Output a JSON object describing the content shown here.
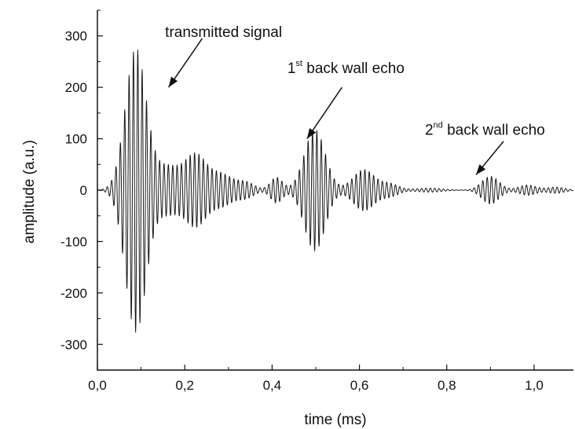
{
  "chart_data": {
    "type": "line",
    "title": "",
    "xlabel": "time (ms)",
    "ylabel": "amplitude (a.u.)",
    "xlim": [
      0,
      1.09
    ],
    "ylim": [
      -350,
      350
    ],
    "grid": false,
    "legend": "none",
    "line_color": "#1a1a1a",
    "x_ticks": [
      {
        "value": 0.0,
        "label": "0,0"
      },
      {
        "value": 0.2,
        "label": "0,2"
      },
      {
        "value": 0.4,
        "label": "0,4"
      },
      {
        "value": 0.6,
        "label": "0,6"
      },
      {
        "value": 0.8,
        "label": "0,8"
      },
      {
        "value": 1.0,
        "label": "1,0"
      }
    ],
    "y_ticks": [
      {
        "value": 300,
        "label": "300"
      },
      {
        "value": 200,
        "label": "200"
      },
      {
        "value": 100,
        "label": "100"
      },
      {
        "value": 0,
        "label": "0"
      },
      {
        "value": -100,
        "label": "-100"
      },
      {
        "value": -200,
        "label": "-200"
      },
      {
        "value": -300,
        "label": "-300"
      }
    ],
    "series": [
      {
        "carrier_frequency_khz": 100,
        "packets": [
          {
            "center_ms": 0.088,
            "width_ms": 0.024,
            "peak_amplitude": 275
          },
          {
            "center_ms": 0.16,
            "width_ms": 0.028,
            "peak_amplitude": 45
          },
          {
            "center_ms": 0.225,
            "width_ms": 0.025,
            "peak_amplitude": 68
          },
          {
            "center_ms": 0.285,
            "width_ms": 0.025,
            "peak_amplitude": 30
          },
          {
            "center_ms": 0.34,
            "width_ms": 0.02,
            "peak_amplitude": 15
          },
          {
            "center_ms": 0.41,
            "width_ms": 0.014,
            "peak_amplitude": 25
          },
          {
            "center_ms": 0.498,
            "width_ms": 0.024,
            "peak_amplitude": 118
          },
          {
            "center_ms": 0.61,
            "width_ms": 0.025,
            "peak_amplitude": 40
          },
          {
            "center_ms": 0.67,
            "width_ms": 0.02,
            "peak_amplitude": 12
          },
          {
            "center_ms": 0.76,
            "width_ms": 0.03,
            "peak_amplitude": 4
          },
          {
            "center_ms": 0.9,
            "width_ms": 0.02,
            "peak_amplitude": 27
          },
          {
            "center_ms": 0.985,
            "width_ms": 0.02,
            "peak_amplitude": 10
          },
          {
            "center_ms": 1.05,
            "width_ms": 0.02,
            "peak_amplitude": 6
          }
        ]
      }
    ],
    "annotations": [
      {
        "id": "transmitted",
        "text": "transmitted signal",
        "sup": "",
        "rest": "",
        "text_x": 0.155,
        "text_y": 298,
        "arrow_from": [
          0.24,
          295
        ],
        "arrow_to": [
          0.163,
          200
        ]
      },
      {
        "id": "echo1",
        "base": "1",
        "sup": "st",
        "rest": " back wall echo",
        "text_x": 0.435,
        "text_y": 228,
        "arrow_from": [
          0.56,
          200
        ],
        "arrow_to": [
          0.48,
          100
        ]
      },
      {
        "id": "echo2",
        "base": "2",
        "sup": "nd",
        "rest": " back wall echo",
        "text_x": 0.75,
        "text_y": 108,
        "arrow_from": [
          0.93,
          95
        ],
        "arrow_to": [
          0.867,
          30
        ]
      }
    ]
  }
}
